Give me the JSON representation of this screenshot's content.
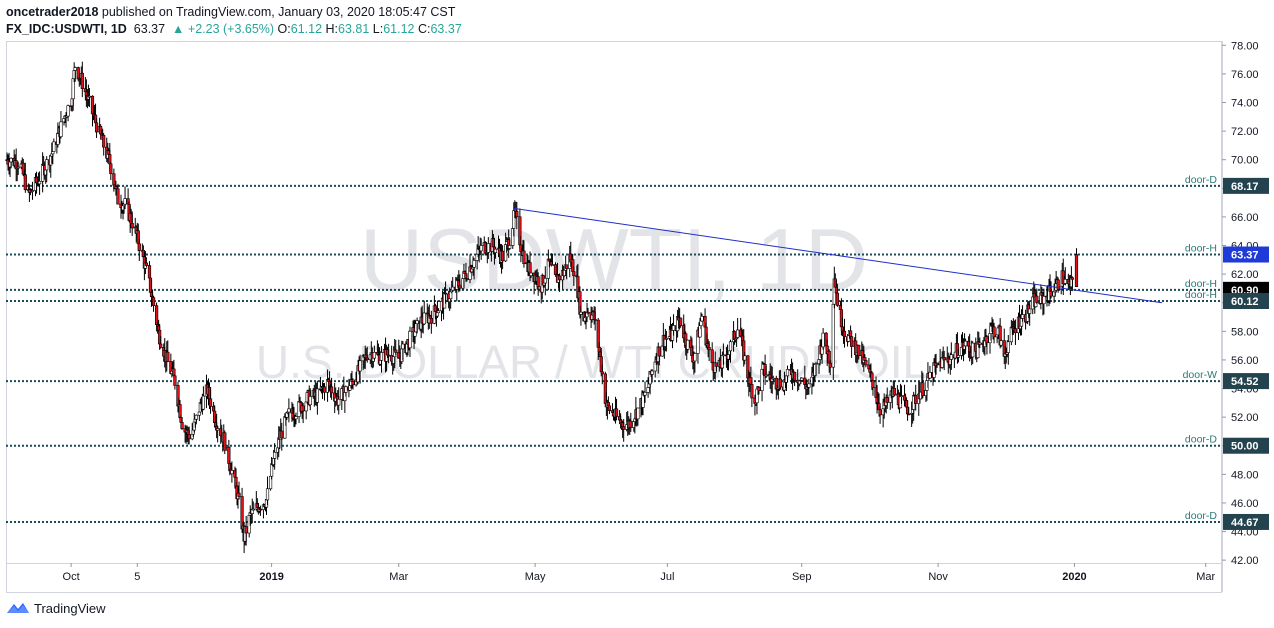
{
  "header": {
    "author": "oncetrader2018",
    "published_text": "published on TradingView.com, January 03, 2020 18:05:47 CST",
    "symbol": "FX_IDC:USDWTI, 1D",
    "last": "63.37",
    "change": "+2.23 (+3.65%)",
    "o_label": "O:",
    "o_val": "61.12",
    "h_label": "H:",
    "h_val": "63.81",
    "l_label": "L:",
    "l_val": "61.12",
    "c_label": "C:",
    "c_val": "63.37"
  },
  "watermark": {
    "line1": "USDWTI, 1D",
    "line2": "U.S. DOLLAR / WTI CRUDE OIL"
  },
  "footer": {
    "brand": "TradingView"
  },
  "colors": {
    "up": "#ffffff",
    "down": "#e0101a",
    "wick": "#000000",
    "level_line": "#1b4a5a",
    "trend_line": "#1f2ec8",
    "price_badge_blue": "#1f3ad6",
    "price_badge_black": "#000000",
    "level_badge": "#23444f",
    "level_text": "#2b7a78"
  },
  "chart_data": {
    "type": "candlestick",
    "title": "USDWTI, 1D",
    "y_axis": {
      "ticks": [
        42,
        44,
        46,
        48,
        50,
        52,
        54,
        56,
        58,
        60,
        62,
        64,
        66,
        68,
        70,
        72,
        74,
        76,
        78
      ],
      "range": [
        41.8,
        78.3
      ]
    },
    "x_axis": {
      "labels": [
        "Oct",
        "5",
        "2019",
        "Mar",
        "May",
        "Jul",
        "Sep",
        "Nov",
        "2020",
        "Mar"
      ],
      "label_days": [
        0,
        65,
        197,
        322,
        456,
        586,
        718,
        852,
        986,
        1115
      ],
      "day_range": [
        -64,
        1131
      ]
    },
    "levels": [
      {
        "label": "door-D",
        "value": 68.17,
        "badge": "68.17"
      },
      {
        "label": "door-H",
        "value": 63.37,
        "badge": "63.37"
      },
      {
        "label": "door-H",
        "value": 60.9,
        "badge": "60.90"
      },
      {
        "label": "door-H",
        "value": 60.12,
        "badge": "60.12"
      },
      {
        "label": "door-W",
        "value": 54.52,
        "badge": "54.52"
      },
      {
        "label": "door-D",
        "value": 50.0,
        "badge": "50.00"
      },
      {
        "label": "door-D",
        "value": 44.67,
        "badge": "44.67"
      }
    ],
    "trendline": {
      "from": [
        435,
        66.6
      ],
      "to": [
        1072,
        60.0
      ]
    },
    "last_price": {
      "value": 63.37,
      "open": 61.12,
      "high": 63.81,
      "low": 61.12,
      "close": 63.37
    },
    "path": [
      [
        -64,
        70.0
      ],
      [
        -50,
        69.8
      ],
      [
        -42,
        67.5
      ],
      [
        -32,
        68.6
      ],
      [
        -18,
        70.6
      ],
      [
        -8,
        72.7
      ],
      [
        0,
        74.2
      ],
      [
        4,
        76.6
      ],
      [
        10,
        75.6
      ],
      [
        18,
        73.9
      ],
      [
        28,
        71.8
      ],
      [
        38,
        69.8
      ],
      [
        46,
        67.2
      ],
      [
        54,
        66.8
      ],
      [
        62,
        65.2
      ],
      [
        70,
        63.4
      ],
      [
        78,
        61.0
      ],
      [
        86,
        57.9
      ],
      [
        94,
        56.0
      ],
      [
        102,
        54.5
      ],
      [
        110,
        51.2
      ],
      [
        118,
        50.6
      ],
      [
        126,
        52.6
      ],
      [
        134,
        53.9
      ],
      [
        142,
        51.8
      ],
      [
        150,
        50.5
      ],
      [
        158,
        48.2
      ],
      [
        164,
        46.4
      ],
      [
        170,
        43.6
      ],
      [
        176,
        45.1
      ],
      [
        184,
        45.8
      ],
      [
        192,
        46.2
      ],
      [
        198,
        48.7
      ],
      [
        206,
        50.8
      ],
      [
        214,
        52.2
      ],
      [
        222,
        52.5
      ],
      [
        232,
        53.3
      ],
      [
        242,
        53.5
      ],
      [
        252,
        54.4
      ],
      [
        262,
        53.2
      ],
      [
        272,
        54.0
      ],
      [
        282,
        55.1
      ],
      [
        292,
        56.6
      ],
      [
        302,
        56.2
      ],
      [
        312,
        56.4
      ],
      [
        322,
        56.1
      ],
      [
        334,
        57.6
      ],
      [
        344,
        58.7
      ],
      [
        354,
        59.1
      ],
      [
        364,
        59.9
      ],
      [
        374,
        60.7
      ],
      [
        384,
        61.6
      ],
      [
        394,
        62.7
      ],
      [
        404,
        63.9
      ],
      [
        414,
        64.0
      ],
      [
        424,
        63.2
      ],
      [
        432,
        64.7
      ],
      [
        436,
        66.3
      ],
      [
        442,
        64.0
      ],
      [
        448,
        62.5
      ],
      [
        456,
        61.9
      ],
      [
        462,
        61.2
      ],
      [
        470,
        62.7
      ],
      [
        476,
        61.6
      ],
      [
        484,
        62.1
      ],
      [
        490,
        63.2
      ],
      [
        496,
        62.0
      ],
      [
        502,
        58.6
      ],
      [
        508,
        59.6
      ],
      [
        514,
        58.9
      ],
      [
        520,
        56.1
      ],
      [
        526,
        52.8
      ],
      [
        532,
        52.3
      ],
      [
        540,
        51.6
      ],
      [
        548,
        51.5
      ],
      [
        556,
        52.4
      ],
      [
        566,
        53.8
      ],
      [
        574,
        56.1
      ],
      [
        582,
        57.4
      ],
      [
        590,
        57.7
      ],
      [
        598,
        58.9
      ],
      [
        604,
        57.4
      ],
      [
        612,
        56.1
      ],
      [
        620,
        59.1
      ],
      [
        628,
        56.0
      ],
      [
        636,
        55.3
      ],
      [
        646,
        56.6
      ],
      [
        656,
        58.4
      ],
      [
        664,
        55.2
      ],
      [
        672,
        53.1
      ],
      [
        680,
        55.3
      ],
      [
        690,
        54.5
      ],
      [
        700,
        54.4
      ],
      [
        708,
        55.2
      ],
      [
        718,
        54.5
      ],
      [
        726,
        53.9
      ],
      [
        734,
        56.3
      ],
      [
        740,
        57.6
      ],
      [
        746,
        55.9
      ],
      [
        750,
        61.9
      ],
      [
        754,
        59.6
      ],
      [
        760,
        58.0
      ],
      [
        766,
        57.4
      ],
      [
        772,
        56.8
      ],
      [
        780,
        55.7
      ],
      [
        788,
        54.4
      ],
      [
        796,
        52.3
      ],
      [
        802,
        53.0
      ],
      [
        808,
        53.7
      ],
      [
        816,
        53.0
      ],
      [
        824,
        52.5
      ],
      [
        832,
        53.6
      ],
      [
        840,
        54.3
      ],
      [
        848,
        55.3
      ],
      [
        856,
        55.9
      ],
      [
        864,
        56.1
      ],
      [
        872,
        56.8
      ],
      [
        880,
        57.0
      ],
      [
        888,
        56.5
      ],
      [
        896,
        57.2
      ],
      [
        904,
        58.2
      ],
      [
        912,
        57.9
      ],
      [
        916,
        56.0
      ],
      [
        922,
        57.5
      ],
      [
        930,
        58.6
      ],
      [
        938,
        59.1
      ],
      [
        946,
        60.1
      ],
      [
        954,
        60.2
      ],
      [
        962,
        60.8
      ],
      [
        968,
        61.1
      ],
      [
        974,
        61.8
      ],
      [
        980,
        61.1
      ],
      [
        986,
        61.4
      ]
    ]
  }
}
